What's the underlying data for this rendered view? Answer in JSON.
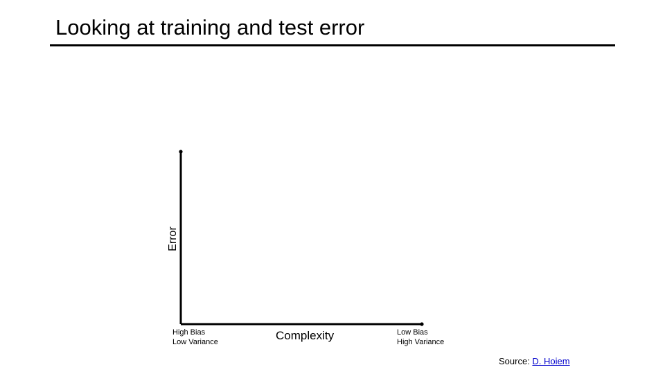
{
  "slide": {
    "title": "Looking at training and test error"
  },
  "diagram": {
    "y_axis_label": "Error",
    "x_axis_label": "Complexity",
    "left_note": {
      "line1": "High Bias",
      "line2": "Low Variance"
    },
    "right_note": {
      "line1": "Low Bias",
      "line2": "High Variance"
    }
  },
  "source": {
    "prefix": "Source: ",
    "link_text": "D. Hoiem"
  }
}
